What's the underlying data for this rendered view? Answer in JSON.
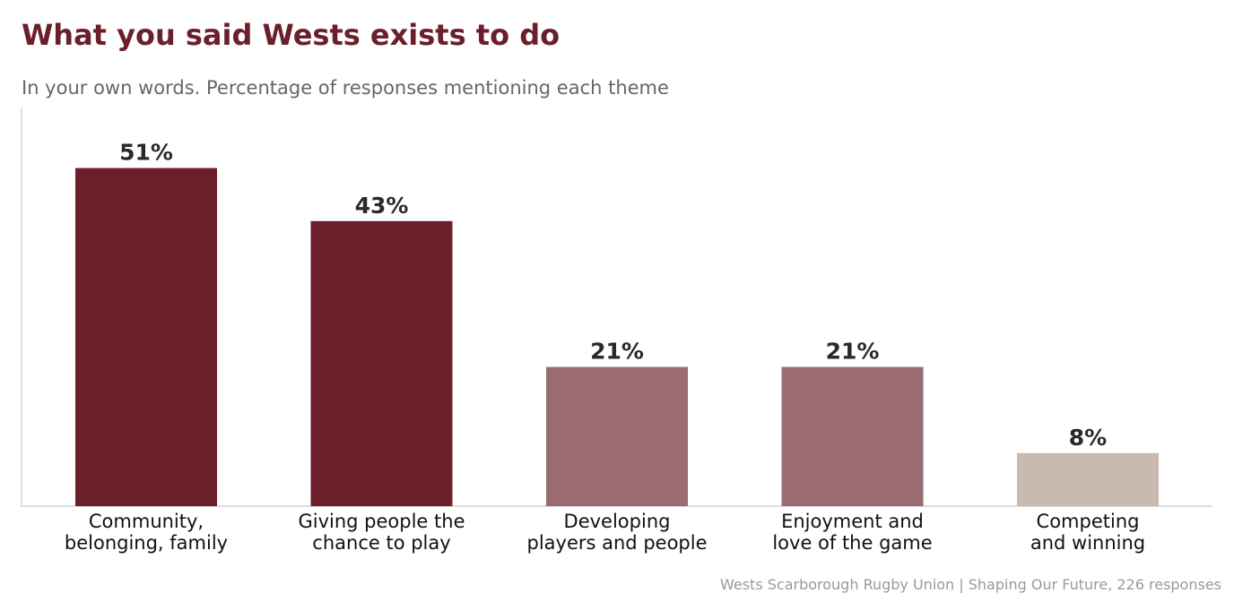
{
  "chart_data": {
    "type": "bar",
    "title": "What you said Wests exists to do",
    "subtitle": "In your own words. Percentage of responses mentioning each theme",
    "categories": [
      [
        "Community,",
        "belonging, family"
      ],
      [
        "Giving people the",
        "chance to play"
      ],
      [
        "Developing",
        "players and people"
      ],
      [
        "Enjoyment and",
        "love of the game"
      ],
      [
        "Competing",
        "and winning"
      ]
    ],
    "values": [
      51,
      43,
      21,
      21,
      8
    ],
    "labels": [
      "51%",
      "43%",
      "21%",
      "21%",
      "8%"
    ],
    "colors": [
      "#6b1f2a",
      "#6b1f2a",
      "#9a6b71",
      "#9a6b71",
      "#c9b9ae"
    ],
    "ylim": [
      0,
      60
    ],
    "grid": false,
    "xlabel": "",
    "ylabel": ""
  },
  "footer": "Wests Scarborough Rugby Union  |  Shaping Our Future, 226 responses"
}
